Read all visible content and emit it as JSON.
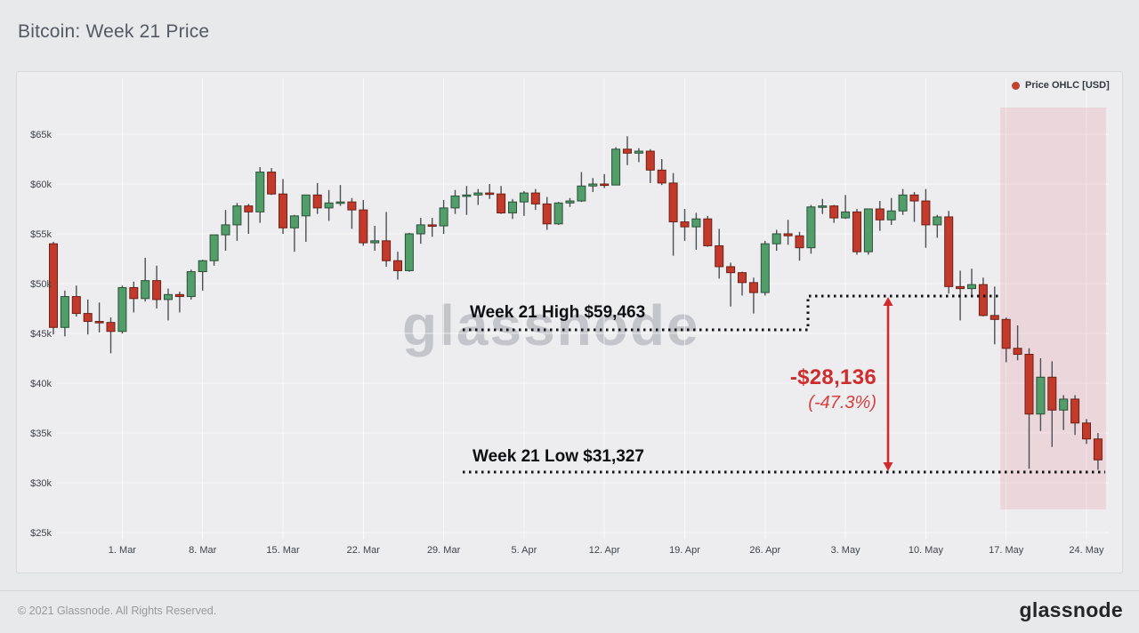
{
  "header": {
    "title": "Bitcoin: Week 21 Price"
  },
  "legend": {
    "label": "Price OHLC [USD]",
    "marker_color": "#c0432e"
  },
  "annotations": {
    "high_label": "Week 21 High $59,463",
    "low_label": "Week 21 Low $31,327",
    "delta_label": "-$28,136",
    "delta_pct_label": "(-47.3%)",
    "high_value_usd": 59463,
    "low_value_usd": 31327,
    "delta_usd": -28136,
    "delta_pct": -47.3
  },
  "watermark": {
    "text": "glassnode"
  },
  "footer": {
    "copyright": "© 2021 Glassnode. All Rights Reserved.",
    "brand": "glassnode"
  },
  "colors": {
    "up_candle": "#519e6a",
    "up_candle_border": "#2c4f38",
    "down_candle": "#c23a2b",
    "down_candle_border": "#6e2015",
    "wick": "#4b5056",
    "annotation_red": "#d02c2c",
    "dotted_black": "#101215",
    "band_pink": "rgba(219,112,128,0.18)",
    "grid": "rgba(255,255,255,0.65)"
  },
  "chart_data": {
    "type": "candlestick",
    "title": "Bitcoin: Week 21 Price",
    "series_name": "Price OHLC [USD]",
    "unit_note": "prices in USD thousands, daily candles on consecutive days",
    "start_date": "2021-02-23",
    "end_date": "2021-05-25",
    "grid": true,
    "legend_position": "top-right",
    "y_range_displayed": [
      24,
      70.6
    ],
    "y_ticks": [
      {
        "label": "$25k",
        "value": 25
      },
      {
        "label": "$30k",
        "value": 30
      },
      {
        "label": "$35k",
        "value": 35
      },
      {
        "label": "$40k",
        "value": 40
      },
      {
        "label": "$45k",
        "value": 45
      },
      {
        "label": "$50k",
        "value": 50
      },
      {
        "label": "$55k",
        "value": 55
      },
      {
        "label": "$60k",
        "value": 60
      },
      {
        "label": "$65k",
        "value": 65
      }
    ],
    "x_ticks": [
      {
        "label": "1. Mar",
        "index": 6
      },
      {
        "label": "8. Mar",
        "index": 13
      },
      {
        "label": "15. Mar",
        "index": 20
      },
      {
        "label": "22. Mar",
        "index": 27
      },
      {
        "label": "29. Mar",
        "index": 34
      },
      {
        "label": "5. Apr",
        "index": 41
      },
      {
        "label": "12. Apr",
        "index": 48
      },
      {
        "label": "19. Apr",
        "index": 55
      },
      {
        "label": "26. Apr",
        "index": 62
      },
      {
        "label": "3. May",
        "index": 69
      },
      {
        "label": "10. May",
        "index": 76
      },
      {
        "label": "17. May",
        "index": 83
      },
      {
        "label": "24. May",
        "index": 90
      }
    ],
    "week21_band": {
      "from_index": 83,
      "to_index": 91,
      "start_date": "2021-05-17"
    },
    "ohlc": [
      [
        54.0,
        54.2,
        44.9,
        45.6
      ],
      [
        45.6,
        49.3,
        44.7,
        48.7
      ],
      [
        48.7,
        49.8,
        46.7,
        47.0
      ],
      [
        47.0,
        48.4,
        44.9,
        46.2
      ],
      [
        46.2,
        48.1,
        45.1,
        46.1
      ],
      [
        46.1,
        46.6,
        43.0,
        45.2
      ],
      [
        45.2,
        49.8,
        45.0,
        49.6
      ],
      [
        49.6,
        50.2,
        47.1,
        48.5
      ],
      [
        48.5,
        52.6,
        48.2,
        50.3
      ],
      [
        50.3,
        51.8,
        47.5,
        48.4
      ],
      [
        48.4,
        49.5,
        46.3,
        48.9
      ],
      [
        48.9,
        49.2,
        47.1,
        48.7
      ],
      [
        48.7,
        51.4,
        48.4,
        51.2
      ],
      [
        51.2,
        52.4,
        49.3,
        52.3
      ],
      [
        52.3,
        54.9,
        51.8,
        54.9
      ],
      [
        54.9,
        57.4,
        53.3,
        55.9
      ],
      [
        55.9,
        58.1,
        54.3,
        57.8
      ],
      [
        57.8,
        58.0,
        55.0,
        57.2
      ],
      [
        57.2,
        61.7,
        56.1,
        61.2
      ],
      [
        61.2,
        61.6,
        58.9,
        59.0
      ],
      [
        59.0,
        60.5,
        55.0,
        55.6
      ],
      [
        55.6,
        56.9,
        53.2,
        56.8
      ],
      [
        56.8,
        58.9,
        54.2,
        58.9
      ],
      [
        58.9,
        60.1,
        57.0,
        57.6
      ],
      [
        57.6,
        59.4,
        56.3,
        58.1
      ],
      [
        58.1,
        59.9,
        57.8,
        58.2
      ],
      [
        58.2,
        58.6,
        55.5,
        57.4
      ],
      [
        57.4,
        58.4,
        53.8,
        54.1
      ],
      [
        54.1,
        55.8,
        53.3,
        54.3
      ],
      [
        54.3,
        57.2,
        51.7,
        52.3
      ],
      [
        52.3,
        53.2,
        50.4,
        51.3
      ],
      [
        51.3,
        55.1,
        51.2,
        55.0
      ],
      [
        55.0,
        56.6,
        54.0,
        55.9
      ],
      [
        55.9,
        56.6,
        54.7,
        55.8
      ],
      [
        55.8,
        58.4,
        55.0,
        57.6
      ],
      [
        57.6,
        59.4,
        57.0,
        58.8
      ],
      [
        58.8,
        59.8,
        56.9,
        58.9
      ],
      [
        58.9,
        59.5,
        57.9,
        59.1
      ],
      [
        59.1,
        60.0,
        58.5,
        59.0
      ],
      [
        59.0,
        59.8,
        57.0,
        57.1
      ],
      [
        57.1,
        58.5,
        56.5,
        58.2
      ],
      [
        58.2,
        59.3,
        56.8,
        59.1
      ],
      [
        59.1,
        59.5,
        57.4,
        58.0
      ],
      [
        58.0,
        58.7,
        55.4,
        56.0
      ],
      [
        56.0,
        58.2,
        55.9,
        58.1
      ],
      [
        58.1,
        58.6,
        57.7,
        58.3
      ],
      [
        58.3,
        61.2,
        58.2,
        59.8
      ],
      [
        59.8,
        60.6,
        59.2,
        60.0
      ],
      [
        60.0,
        61.0,
        59.6,
        59.9
      ],
      [
        59.9,
        63.7,
        59.9,
        63.5
      ],
      [
        63.5,
        64.8,
        61.9,
        63.1
      ],
      [
        63.1,
        63.6,
        62.2,
        63.3
      ],
      [
        63.3,
        63.5,
        60.1,
        61.4
      ],
      [
        61.4,
        62.5,
        59.9,
        60.1
      ],
      [
        60.1,
        61.1,
        52.8,
        56.2
      ],
      [
        56.2,
        57.5,
        54.3,
        55.7
      ],
      [
        55.7,
        57.1,
        53.4,
        56.5
      ],
      [
        56.5,
        56.8,
        53.7,
        53.8
      ],
      [
        53.8,
        55.5,
        50.5,
        51.7
      ],
      [
        51.7,
        52.1,
        47.7,
        51.1
      ],
      [
        51.1,
        51.2,
        48.8,
        50.1
      ],
      [
        50.1,
        50.6,
        47.0,
        49.1
      ],
      [
        49.1,
        54.3,
        48.8,
        54.0
      ],
      [
        54.0,
        55.4,
        53.3,
        55.0
      ],
      [
        55.0,
        56.4,
        53.9,
        54.8
      ],
      [
        54.8,
        55.2,
        52.3,
        53.6
      ],
      [
        53.6,
        57.9,
        53.0,
        57.7
      ],
      [
        57.7,
        58.5,
        57.0,
        57.8
      ],
      [
        57.8,
        57.9,
        56.1,
        56.6
      ],
      [
        56.6,
        58.9,
        56.5,
        57.2
      ],
      [
        57.2,
        57.5,
        52.9,
        53.2
      ],
      [
        53.2,
        57.5,
        52.9,
        57.5
      ],
      [
        57.5,
        58.3,
        55.3,
        56.4
      ],
      [
        56.4,
        58.6,
        55.9,
        57.3
      ],
      [
        57.3,
        59.5,
        56.9,
        58.9
      ],
      [
        58.9,
        59.2,
        56.2,
        58.3
      ],
      [
        58.3,
        59.5,
        53.6,
        55.9
      ],
      [
        55.9,
        56.9,
        54.6,
        56.7
      ],
      [
        56.7,
        57.3,
        49.0,
        49.7
      ],
      [
        49.7,
        51.3,
        46.3,
        49.5
      ],
      [
        49.5,
        51.5,
        48.9,
        49.9
      ],
      [
        49.9,
        50.6,
        46.7,
        46.8
      ],
      [
        46.8,
        49.7,
        43.9,
        46.4
      ],
      [
        46.4,
        46.6,
        42.1,
        43.5
      ],
      [
        43.5,
        45.8,
        42.3,
        42.9
      ],
      [
        42.9,
        43.5,
        31.4,
        36.9
      ],
      [
        36.9,
        42.5,
        35.2,
        40.6
      ],
      [
        40.6,
        42.2,
        33.6,
        37.3
      ],
      [
        37.3,
        38.8,
        35.3,
        38.4
      ],
      [
        38.4,
        38.8,
        34.8,
        36.0
      ],
      [
        36.0,
        36.4,
        33.9,
        34.4
      ],
      [
        34.4,
        35.0,
        31.3,
        32.3
      ]
    ]
  }
}
